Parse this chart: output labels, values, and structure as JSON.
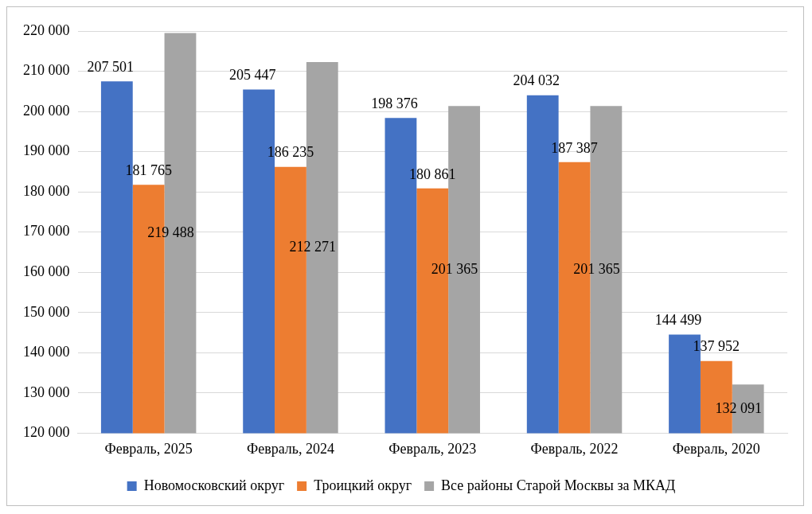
{
  "chart_data": {
    "type": "bar",
    "categories": [
      "Февраль, 2025",
      "Февраль, 2024",
      "Февраль, 2023",
      "Февраль, 2022",
      "Февраль, 2020"
    ],
    "series": [
      {
        "name": "Новомосковский округ",
        "color": "#4472c4",
        "values": [
          207501,
          205447,
          198376,
          204032,
          144499
        ],
        "value_labels": [
          "207 501",
          "205 447",
          "198 376",
          "204 032",
          "144 499"
        ]
      },
      {
        "name": "Троицкий округ",
        "color": "#ed7d31",
        "values": [
          181765,
          186235,
          180861,
          187387,
          137952
        ],
        "value_labels": [
          "181 765",
          "186 235",
          "180 861",
          "187 387",
          "137 952"
        ]
      },
      {
        "name": "Все районы Старой Москвы за МКАД",
        "color": "#a5a5a5",
        "values": [
          219488,
          212271,
          201365,
          201365,
          132091
        ],
        "value_labels": [
          "219 488",
          "212 271",
          "201 365",
          "201 365",
          "132 091"
        ]
      }
    ],
    "ylim": [
      120000,
      220000
    ],
    "yticks": [
      {
        "value": 120000,
        "label": "120 000"
      },
      {
        "value": 130000,
        "label": "130 000"
      },
      {
        "value": 140000,
        "label": "140 000"
      },
      {
        "value": 150000,
        "label": "150 000"
      },
      {
        "value": 160000,
        "label": "160 000"
      },
      {
        "value": 170000,
        "label": "170 000"
      },
      {
        "value": 180000,
        "label": "180 000"
      },
      {
        "value": 190000,
        "label": "190 000"
      },
      {
        "value": 200000,
        "label": "200 000"
      },
      {
        "value": 210000,
        "label": "210 000"
      },
      {
        "value": 220000,
        "label": "220 000"
      }
    ],
    "grid": "y",
    "legend": "bottom"
  }
}
